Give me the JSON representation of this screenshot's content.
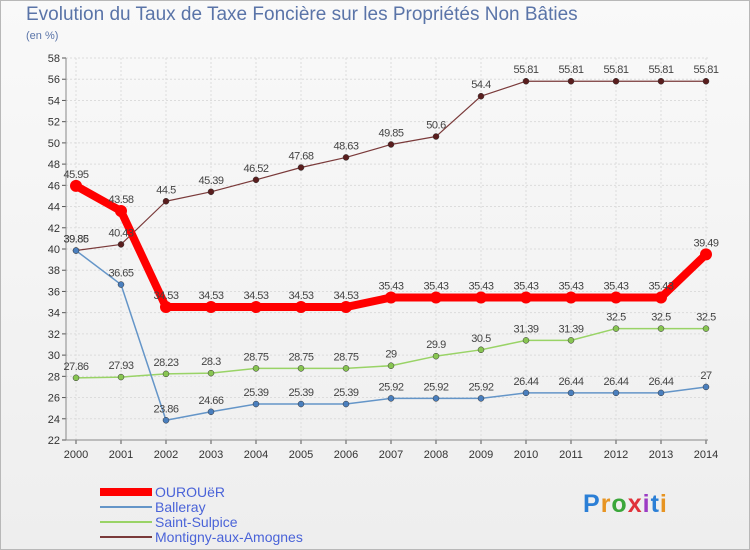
{
  "title": "Evolution du Taux de Taxe Foncière sur les Propriétés Non Bâties",
  "subtitle": "(en %)",
  "logo": {
    "text": "Proxiti",
    "colors": [
      "#2b7fd6",
      "#e79422",
      "#3aa63a",
      "#e0323a",
      "#9c3cc4",
      "#2b7fd6",
      "#e79422"
    ]
  },
  "chart_data": {
    "type": "line",
    "title": "Evolution du Taux de Taxe Foncière sur les Propriétés Non Bâties",
    "ylabel": "(en %)",
    "xlabel": "",
    "ylim": [
      22,
      58
    ],
    "yticks": [
      22,
      24,
      26,
      28,
      30,
      32,
      34,
      36,
      38,
      40,
      42,
      44,
      46,
      48,
      50,
      52,
      54,
      56,
      58
    ],
    "categories": [
      "2000",
      "2001",
      "2002",
      "2003",
      "2004",
      "2005",
      "2006",
      "2007",
      "2008",
      "2009",
      "2010",
      "2011",
      "2012",
      "2013",
      "2014"
    ],
    "series": [
      {
        "name": "OUROUëR",
        "color": "#ff0000",
        "values": [
          45.95,
          43.58,
          34.53,
          34.53,
          34.53,
          34.53,
          34.53,
          35.43,
          35.43,
          35.43,
          35.43,
          35.43,
          35.43,
          35.43,
          39.49
        ],
        "labels": [
          "45.95",
          "43.58",
          "34.53",
          "34.53",
          "34.53",
          "34.53",
          "34.53",
          "35.43",
          "35.43",
          "35.43",
          "35.43",
          "35.43",
          "35.43",
          "35.43",
          "39.49"
        ]
      },
      {
        "name": "Balleray",
        "color": "#6495c8",
        "values": [
          39.85,
          36.65,
          23.86,
          24.66,
          25.39,
          25.39,
          25.39,
          25.92,
          25.92,
          25.92,
          26.44,
          26.44,
          26.44,
          26.44,
          27
        ],
        "labels": [
          "39.85",
          "36.65",
          "23.86",
          "24.66",
          "25.39",
          "25.39",
          "25.39",
          "25.92",
          "25.92",
          "25.92",
          "26.44",
          "26.44",
          "26.44",
          "26.44",
          "27"
        ]
      },
      {
        "name": "Saint-Sulpice",
        "color": "#99d366",
        "values": [
          27.86,
          27.93,
          28.23,
          28.3,
          28.75,
          28.75,
          28.75,
          29,
          29.9,
          30.5,
          31.39,
          31.39,
          32.5,
          32.5,
          32.5
        ],
        "labels": [
          "27.86",
          "27.93",
          "28.23",
          "28.3",
          "28.75",
          "28.75",
          "28.75",
          "29",
          "29.9",
          "30.5",
          "31.39",
          "31.39",
          "32.5",
          "32.5",
          "32.5"
        ]
      },
      {
        "name": "Montigny-aux-Amognes",
        "color": "#7a3a3a",
        "values": [
          39.86,
          40.43,
          44.5,
          45.39,
          46.52,
          47.68,
          48.63,
          49.85,
          50.6,
          54.4,
          55.81,
          55.81,
          55.81,
          55.81,
          55.81
        ],
        "labels": [
          "39.86",
          "40.43",
          "44.5",
          "45.39",
          "46.52",
          "47.68",
          "48.63",
          "49.85",
          "50.6",
          "54.4",
          "55.81",
          "55.81",
          "55.81",
          "55.81",
          "55.81"
        ]
      }
    ],
    "grid": true,
    "legend": "bottom-left"
  }
}
